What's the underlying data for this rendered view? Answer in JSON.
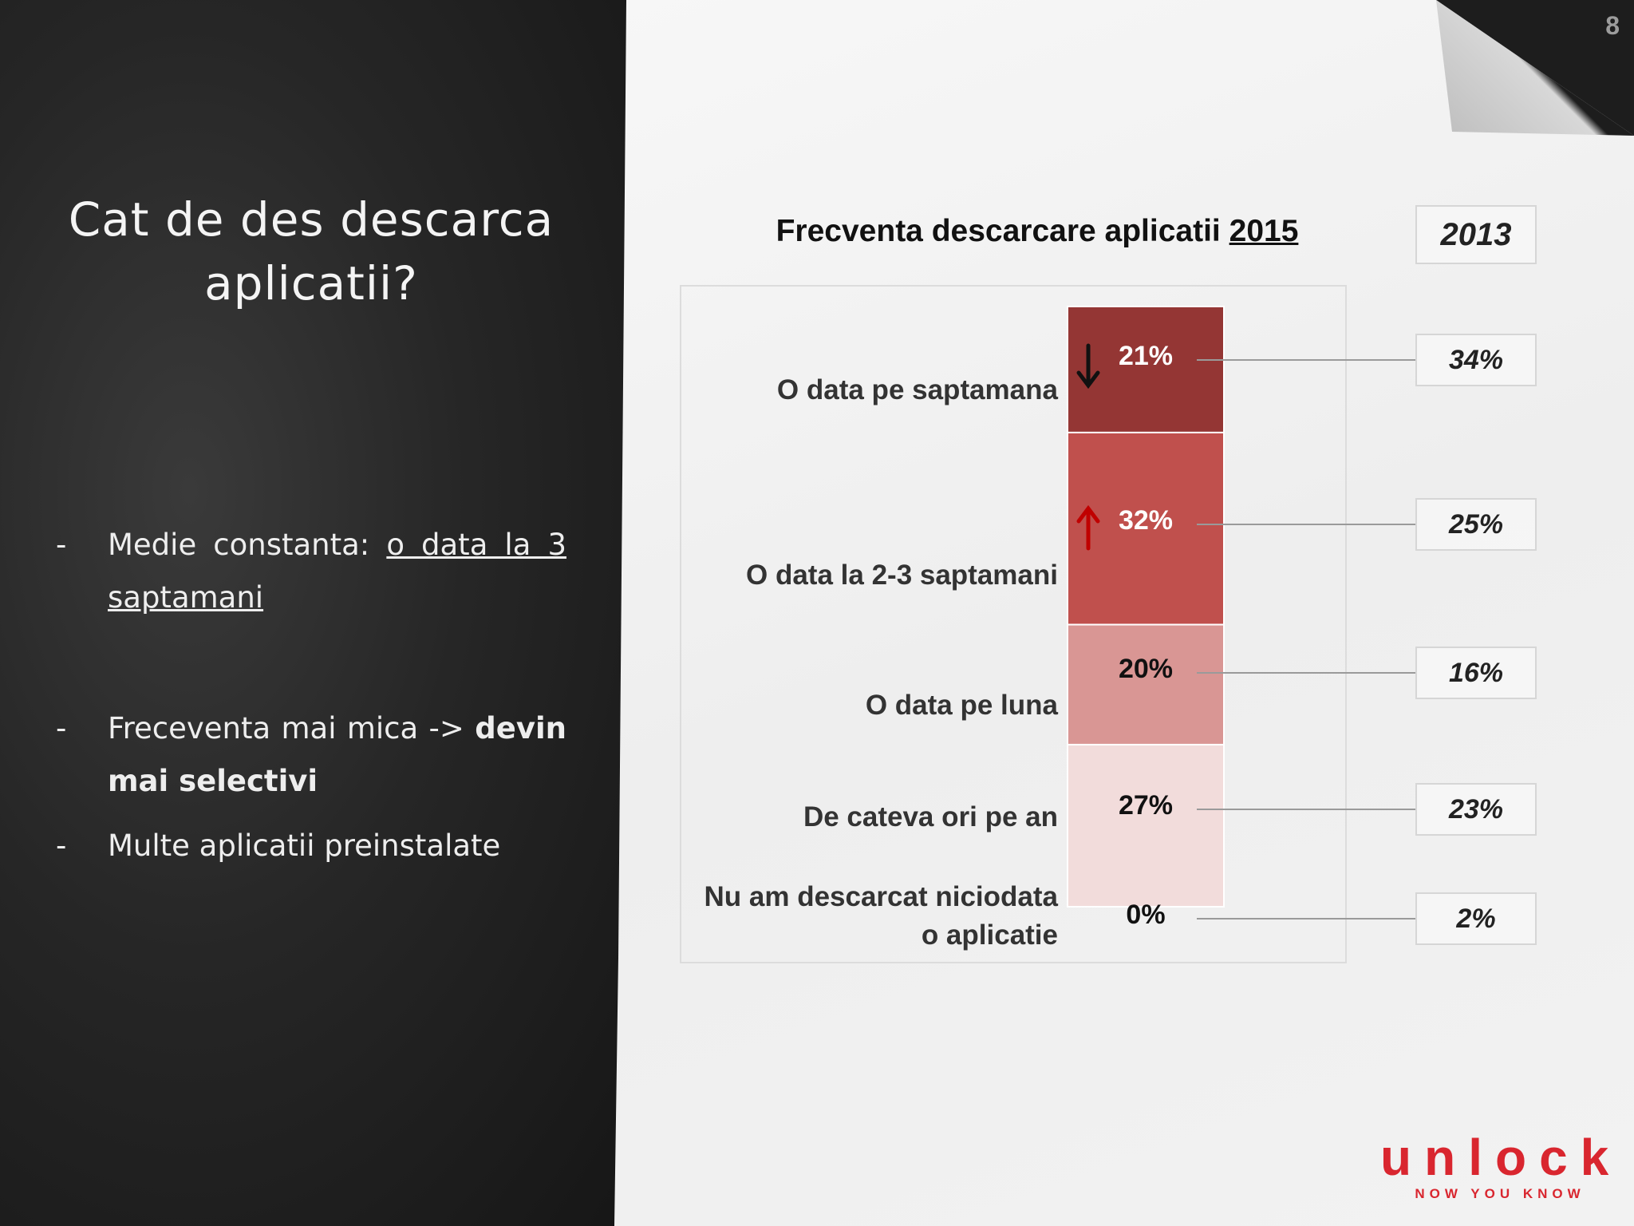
{
  "page_number": "8",
  "left_panel": {
    "title": "Cat de des descarca aplicatii?",
    "bullets": [
      {
        "dash": "-",
        "parts": [
          {
            "text": "Medie constanta: ",
            "style": ""
          },
          {
            "text": "o data la 3 saptamani",
            "style": "u"
          }
        ]
      },
      {
        "dash": "-",
        "parts": [
          {
            "text": "Freceventa mai mica -> ",
            "style": ""
          },
          {
            "text": "devin mai selectivi",
            "style": "b"
          }
        ]
      },
      {
        "dash": "-",
        "parts": [
          {
            "text": "Multe aplicatii preinstalate",
            "style": ""
          }
        ]
      }
    ]
  },
  "chart_data": {
    "type": "bar",
    "stacked": true,
    "title": "Frecventa descarcare aplicatii",
    "title_year": "2015",
    "categories": [
      "O data pe saptamana",
      "O data la 2-3 saptamani",
      "O data pe luna",
      "De cateva ori pe an",
      "Nu am descarcat niciodata o aplicatie"
    ],
    "series": [
      {
        "name": "2015",
        "values": [
          21,
          32,
          20,
          27,
          0
        ],
        "labels": [
          "21%",
          "32%",
          "20%",
          "27%",
          "0%"
        ]
      },
      {
        "name": "2013",
        "values": [
          34,
          25,
          16,
          23,
          2
        ],
        "labels": [
          "34%",
          "25%",
          "16%",
          "23%",
          "2%"
        ]
      }
    ],
    "segment_colors": [
      "#943634",
      "#c0504d",
      "#d99694",
      "#f2dcdb",
      "#f2dcdb"
    ],
    "segment_text_colors": [
      "#ffffff",
      "#ffffff",
      "#111111",
      "#111111",
      "#111111"
    ],
    "trend_arrows": [
      {
        "category": "O data pe saptamana",
        "direction": "down",
        "color": "#111111"
      },
      {
        "category": "O data la 2-3 saptamani",
        "direction": "up",
        "color": "#c00000"
      }
    ],
    "comparison_header": "2013"
  },
  "logo": {
    "word": "unlock",
    "tagline": "NOW YOU KNOW",
    "color": "#d9262f"
  }
}
